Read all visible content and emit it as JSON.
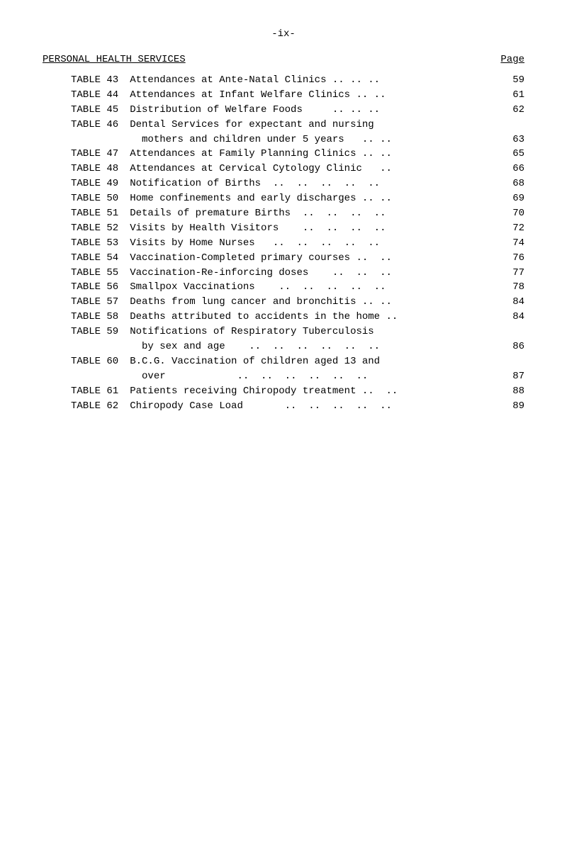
{
  "page_marker": "-ix-",
  "header": {
    "section": "PERSONAL HEALTH SERVICES",
    "page_label": "Page"
  },
  "rows": [
    {
      "label": "TABLE 43",
      "desc": "Attendances at Ante-Natal Clinics .. .. ..",
      "page": "59"
    },
    {
      "label": "TABLE 44",
      "desc": "Attendances at Infant Welfare Clinics .. ..",
      "page": "61"
    },
    {
      "label": "TABLE 45",
      "desc": "Distribution of Welfare Foods     .. .. ..",
      "page": "62"
    },
    {
      "label": "TABLE 46",
      "desc": "Dental Services for expectant and nursing",
      "page": ""
    },
    {
      "label": "",
      "desc": "  mothers and children under 5 years   .. ..",
      "page": "63",
      "sub": true
    },
    {
      "label": "TABLE 47",
      "desc": "Attendances at Family Planning Clinics .. ..",
      "page": "65"
    },
    {
      "label": "TABLE 48",
      "desc": "Attendances at Cervical Cytology Clinic   ..",
      "page": "66"
    },
    {
      "label": "TABLE 49",
      "desc": "Notification of Births  ..  ..  ..  ..  ..",
      "page": "68"
    },
    {
      "label": "TABLE 50",
      "desc": "Home confinements and early discharges .. ..",
      "page": "69"
    },
    {
      "label": "TABLE 51",
      "desc": "Details of premature Births  ..  ..  ..  ..",
      "page": "70"
    },
    {
      "label": "TABLE 52",
      "desc": "Visits by Health Visitors    ..  ..  ..  ..",
      "page": "72"
    },
    {
      "label": "TABLE 53",
      "desc": "Visits by Home Nurses   ..  ..  ..  ..  ..",
      "page": "74"
    },
    {
      "label": "TABLE 54",
      "desc": "Vaccination-Completed primary courses ..  ..",
      "page": "76"
    },
    {
      "label": "TABLE 55",
      "desc": "Vaccination-Re-inforcing doses    ..  ..  ..",
      "page": "77"
    },
    {
      "label": "TABLE 56",
      "desc": "Smallpox Vaccinations    ..  ..  ..  ..  ..",
      "page": "78"
    },
    {
      "label": "TABLE 57",
      "desc": "Deaths from lung cancer and bronchitis .. ..",
      "page": "84"
    },
    {
      "label": "TABLE 58",
      "desc": "Deaths attributed to accidents in the home ..",
      "page": "84"
    },
    {
      "label": "TABLE 59",
      "desc": "Notifications of Respiratory Tuberculosis",
      "page": ""
    },
    {
      "label": "",
      "desc": "  by sex and age    ..  ..  ..  ..  ..  ..",
      "page": "86",
      "sub": true
    },
    {
      "label": "TABLE 60",
      "desc": "B.C.G. Vaccination of children aged 13 and",
      "page": ""
    },
    {
      "label": "",
      "desc": "  over            ..  ..  ..  ..  ..  ..",
      "page": "87",
      "sub": true
    },
    {
      "label": "TABLE 61",
      "desc": "Patients receiving Chiropody treatment ..  ..",
      "page": "88"
    },
    {
      "label": "TABLE 62",
      "desc": "Chiropody Case Load       ..  ..  ..  ..  ..",
      "page": "89"
    }
  ]
}
